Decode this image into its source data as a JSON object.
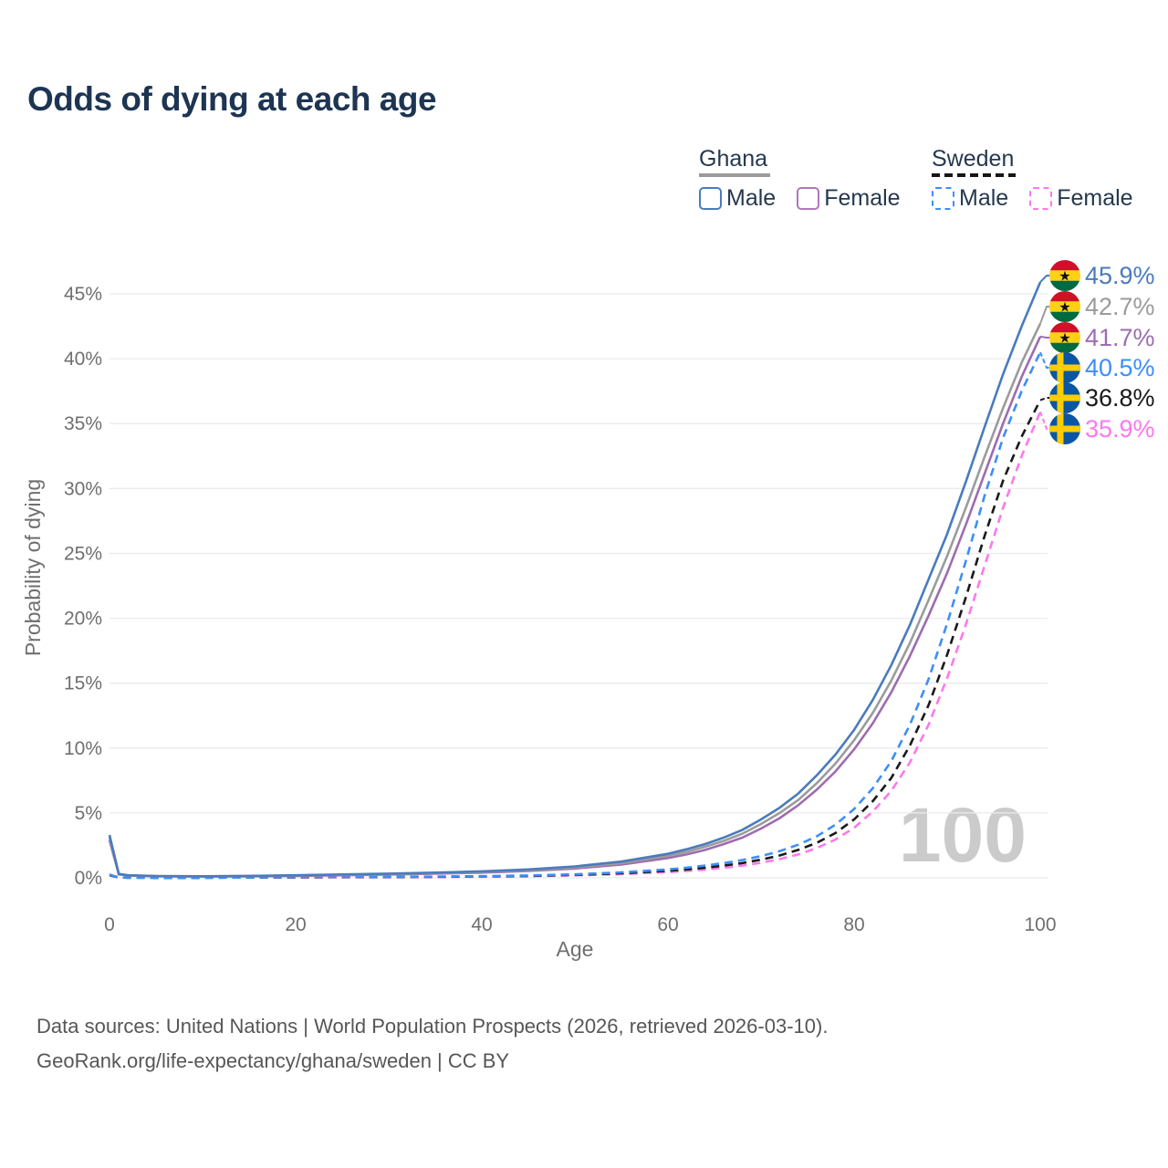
{
  "title": "Odds of dying at each age",
  "watermark": "100",
  "legend": {
    "ghana": {
      "label": "Ghana",
      "male": "Male",
      "female": "Female"
    },
    "sweden": {
      "label": "Sweden",
      "male": "Male",
      "female": "Female"
    }
  },
  "footer": {
    "line1": "Data sources: United Nations | World Population Prospects (2026, retrieved 2026-03-10).",
    "line2": "GeoRank.org/life-expectancy/ghana/sweden | CC BY"
  },
  "icons": {
    "ghana_star": "★"
  },
  "colors": {
    "title_navy": "#1d3553",
    "legend_text": "#25384f",
    "axis_text": "#6f6f6f",
    "gridline": "#ebebeb",
    "watermark": "#cbcbcb",
    "ghana_flag_red": "#ce1126",
    "ghana_flag_gold": "#fcd116",
    "ghana_flag_green": "#006b3f",
    "ghana_flag_star": "#111111",
    "sweden_flag_blue": "#0a56a4",
    "sweden_flag_yellow": "#fecc00"
  },
  "chart_data": {
    "type": "line",
    "title": "Odds of dying at each age",
    "xlabel": "Age",
    "ylabel": "Probability of dying",
    "xlim": [
      0,
      100
    ],
    "ylim": [
      0,
      47
    ],
    "x_ticks": [
      0,
      20,
      40,
      60,
      80,
      100
    ],
    "x_tick_suffix": "",
    "y_ticks": [
      0,
      5,
      10,
      15,
      20,
      25,
      30,
      35,
      40,
      45
    ],
    "y_tick_suffix": "%",
    "grid": "horizontal",
    "legend_position": "top-right",
    "x": [
      0,
      1,
      2,
      5,
      10,
      15,
      20,
      25,
      30,
      35,
      40,
      45,
      50,
      55,
      60,
      62,
      64,
      66,
      68,
      70,
      72,
      74,
      76,
      78,
      80,
      82,
      84,
      86,
      88,
      90,
      92,
      94,
      96,
      98,
      100
    ],
    "series": [
      {
        "id": "gh-m",
        "name": "Ghana male",
        "color": "#4a7bbd",
        "dash": "solid",
        "flag": "ghana",
        "end_label": "45.9%",
        "values": [
          3.3,
          0.3,
          0.2,
          0.14,
          0.12,
          0.15,
          0.2,
          0.26,
          0.32,
          0.4,
          0.5,
          0.65,
          0.88,
          1.25,
          1.85,
          2.2,
          2.6,
          3.1,
          3.7,
          4.5,
          5.4,
          6.5,
          7.9,
          9.5,
          11.4,
          13.7,
          16.4,
          19.5,
          23.0,
          26.5,
          30.5,
          34.7,
          38.8,
          42.5,
          45.9
        ]
      },
      {
        "id": "gh-t",
        "name": "Ghana both sexes",
        "color": "#9b9b9b",
        "dash": "solid",
        "flag": "ghana",
        "end_label": "42.7%",
        "values": [
          3.1,
          0.28,
          0.19,
          0.13,
          0.11,
          0.14,
          0.18,
          0.23,
          0.29,
          0.36,
          0.45,
          0.59,
          0.8,
          1.13,
          1.7,
          2.0,
          2.4,
          2.85,
          3.4,
          4.15,
          5.0,
          6.0,
          7.3,
          8.8,
          10.6,
          12.7,
          15.2,
          18.1,
          21.4,
          24.8,
          28.5,
          32.4,
          36.2,
          39.7,
          42.7
        ]
      },
      {
        "id": "gh-f",
        "name": "Ghana female",
        "color": "#9e6cb0",
        "dash": "solid",
        "flag": "ghana",
        "end_label": "41.7%",
        "values": [
          2.9,
          0.26,
          0.18,
          0.12,
          0.1,
          0.12,
          0.15,
          0.2,
          0.25,
          0.32,
          0.4,
          0.53,
          0.72,
          1.02,
          1.52,
          1.8,
          2.15,
          2.6,
          3.1,
          3.8,
          4.6,
          5.6,
          6.8,
          8.2,
          9.9,
          11.9,
          14.3,
          17.1,
          20.2,
          23.5,
          27.2,
          31.1,
          35.0,
          38.6,
          41.7
        ]
      },
      {
        "id": "sw-m",
        "name": "Sweden male",
        "color": "#3d8ef8",
        "dash": "dashed",
        "flag": "sweden",
        "end_label": "40.5%",
        "values": [
          0.25,
          0.02,
          0.015,
          0.01,
          0.01,
          0.03,
          0.06,
          0.07,
          0.08,
          0.1,
          0.13,
          0.18,
          0.27,
          0.42,
          0.65,
          0.78,
          0.94,
          1.13,
          1.37,
          1.67,
          2.05,
          2.55,
          3.2,
          4.1,
          5.3,
          6.9,
          9.0,
          11.8,
          15.3,
          19.6,
          24.4,
          29.4,
          33.9,
          37.5,
          40.5
        ]
      },
      {
        "id": "sw-t",
        "name": "Sweden both sexes",
        "color": "#1a1a1a",
        "dash": "dashed",
        "flag": "sweden",
        "end_label": "36.8%",
        "values": [
          0.22,
          0.02,
          0.014,
          0.009,
          0.009,
          0.025,
          0.045,
          0.055,
          0.065,
          0.08,
          0.11,
          0.15,
          0.23,
          0.35,
          0.54,
          0.65,
          0.78,
          0.94,
          1.14,
          1.4,
          1.72,
          2.15,
          2.7,
          3.45,
          4.5,
          5.9,
          7.7,
          10.2,
          13.3,
          17.2,
          21.6,
          26.3,
          30.6,
          34.0,
          36.8
        ]
      },
      {
        "id": "sw-f",
        "name": "Sweden female",
        "color": "#fc78ee",
        "dash": "dashed",
        "flag": "sweden",
        "end_label": "35.9%",
        "values": [
          0.2,
          0.018,
          0.012,
          0.008,
          0.008,
          0.02,
          0.03,
          0.04,
          0.05,
          0.06,
          0.09,
          0.13,
          0.19,
          0.29,
          0.44,
          0.53,
          0.64,
          0.77,
          0.94,
          1.16,
          1.44,
          1.8,
          2.3,
          2.95,
          3.85,
          5.1,
          6.7,
          8.9,
          11.8,
          15.4,
          19.5,
          24.0,
          28.5,
          32.5,
          35.9
        ]
      }
    ]
  }
}
